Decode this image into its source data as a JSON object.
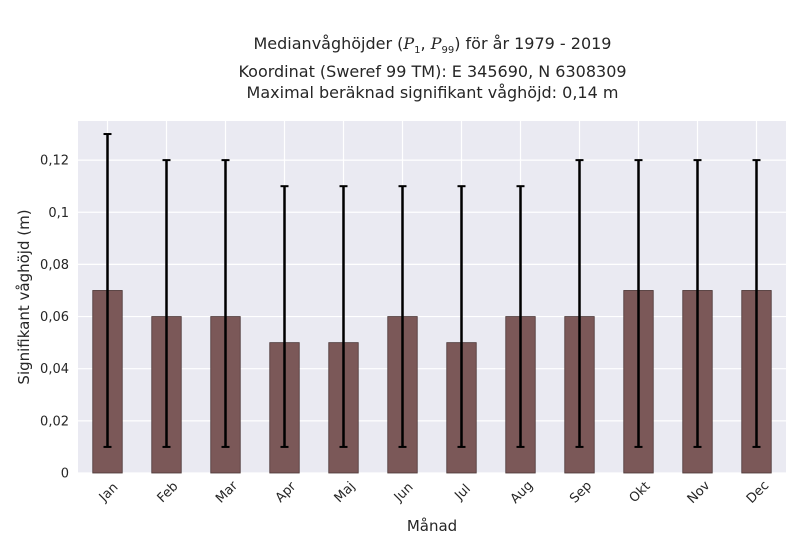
{
  "chart_data": {
    "type": "bar",
    "title": {
      "line1_prefix": "Medianvåghöjder (",
      "p1": "P",
      "p1_sub": "1",
      "comma": ", ",
      "p99": "P",
      "p99_sub": "99",
      "line1_suffix": ") för år 1979 - 2019",
      "line2": "Koordinat (Sweref 99 TM): E 345690, N 6308309",
      "line3": "Maximal beräknad signifikant våghöjd: 0,14 m"
    },
    "xlabel": "Månad",
    "ylabel": "Signifikant våghöjd (m)",
    "categories": [
      "Jan",
      "Feb",
      "Mar",
      "Apr",
      "Maj",
      "Jun",
      "Jul",
      "Aug",
      "Sep",
      "Okt",
      "Nov",
      "Dec"
    ],
    "values": [
      0.07,
      0.06,
      0.06,
      0.05,
      0.05,
      0.06,
      0.05,
      0.06,
      0.06,
      0.07,
      0.07,
      0.07
    ],
    "err_low": [
      0.01,
      0.01,
      0.01,
      0.01,
      0.01,
      0.01,
      0.01,
      0.01,
      0.01,
      0.01,
      0.01,
      0.01
    ],
    "err_high": [
      0.13,
      0.12,
      0.12,
      0.11,
      0.11,
      0.11,
      0.11,
      0.11,
      0.12,
      0.12,
      0.12,
      0.12
    ],
    "ylim": [
      0,
      0.135
    ],
    "yticks": [
      0,
      0.02,
      0.04,
      0.06,
      0.08,
      0.1,
      0.12
    ],
    "ytick_labels": [
      "0",
      "0,02",
      "0,04",
      "0,06",
      "0,08",
      "0,1",
      "0,12"
    ],
    "grid": true,
    "colors": {
      "bar": "#7b5858",
      "bar_edge": "#4a3535",
      "error": "#000000",
      "plot_bg": "#eaeaf2",
      "grid": "#ffffff"
    }
  }
}
